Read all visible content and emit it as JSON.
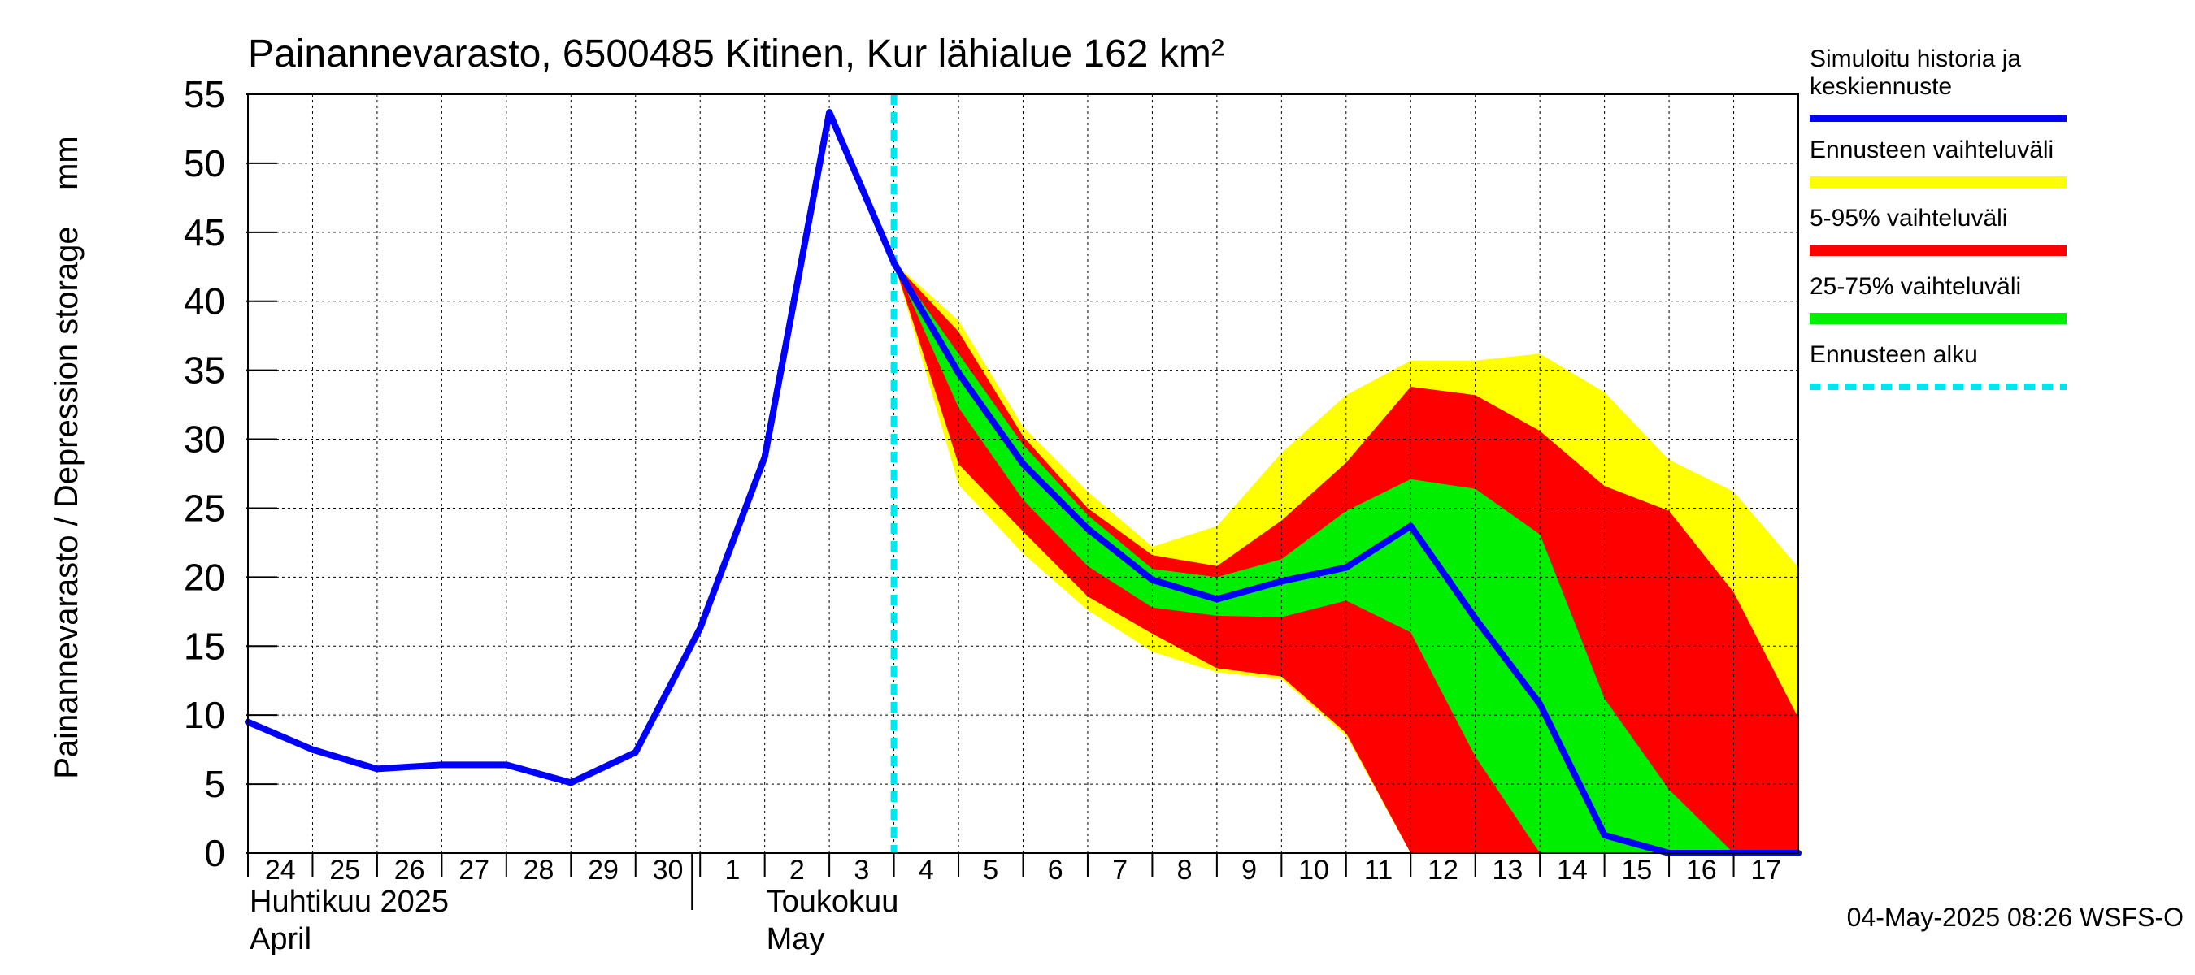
{
  "chart_data": {
    "type": "area",
    "title": "Painannevarasto, 6500485 Kitinen, Kur lähialue 162 km²",
    "ylabel": "Painannevarasto / Depression storage    mm",
    "ylim": [
      0,
      55
    ],
    "y_ticks": [
      "0",
      "5",
      "10",
      "15",
      "20",
      "25",
      "30",
      "35",
      "40",
      "45",
      "50",
      "55"
    ],
    "x_range": [
      0,
      24
    ],
    "x_ticks": [
      {
        "x": 0,
        "label": "24"
      },
      {
        "x": 1,
        "label": "25"
      },
      {
        "x": 2,
        "label": "26"
      },
      {
        "x": 3,
        "label": "27"
      },
      {
        "x": 4,
        "label": "28"
      },
      {
        "x": 5,
        "label": "29"
      },
      {
        "x": 6,
        "label": "30"
      },
      {
        "x": 7,
        "label": "1"
      },
      {
        "x": 8,
        "label": "2"
      },
      {
        "x": 9,
        "label": "3"
      },
      {
        "x": 10,
        "label": "4"
      },
      {
        "x": 11,
        "label": "5"
      },
      {
        "x": 12,
        "label": "6"
      },
      {
        "x": 13,
        "label": "7"
      },
      {
        "x": 14,
        "label": "8"
      },
      {
        "x": 15,
        "label": "9"
      },
      {
        "x": 16,
        "label": "10"
      },
      {
        "x": 17,
        "label": "11"
      },
      {
        "x": 18,
        "label": "12"
      },
      {
        "x": 19,
        "label": "13"
      },
      {
        "x": 20,
        "label": "14"
      },
      {
        "x": 21,
        "label": "15"
      },
      {
        "x": 22,
        "label": "16"
      },
      {
        "x": 23,
        "label": "17"
      }
    ],
    "month_labels": [
      {
        "x": 0,
        "line1": "Huhtikuu  2025",
        "line2": "April"
      },
      {
        "x": 8,
        "line1": "Toukokuu",
        "line2": "May"
      }
    ],
    "month_boundary_x": 7,
    "forecast_start_x": 10,
    "grid": true,
    "legend_position": "right",
    "legend": [
      {
        "label": "Simuloitu historia ja keskiennuste",
        "color": "#0000ff",
        "style": "line"
      },
      {
        "label": "Ennusteen vaihteluväli",
        "color": "#ffff00",
        "style": "band"
      },
      {
        "label": "5-95% vaihteluväli",
        "color": "#ff0000",
        "style": "band"
      },
      {
        "label": "25-75% vaihteluväli",
        "color": "#00ee00",
        "style": "band"
      },
      {
        "label": "Ennusteen alku",
        "color": "#00e5ee",
        "style": "dashed"
      }
    ],
    "series": [
      {
        "name": "Simuloitu historia ja keskiennuste",
        "x": [
          0,
          1,
          2,
          3,
          4,
          5,
          6,
          7,
          8,
          9,
          10,
          11,
          12,
          13,
          14,
          15,
          16,
          17,
          18,
          19,
          20,
          21,
          22,
          23,
          24
        ],
        "values": [
          9.5,
          7.5,
          6.1,
          6.4,
          6.4,
          5.1,
          7.3,
          16.3,
          28.7,
          53.7,
          42.8,
          34.8,
          28.2,
          23.5,
          19.8,
          18.4,
          19.7,
          20.7,
          23.7,
          17.0,
          10.8,
          1.3,
          0,
          0,
          0
        ]
      }
    ],
    "bands": [
      {
        "name": "Ennusteen vaihteluväli",
        "color": "#ffff00",
        "x": [
          10,
          11,
          12,
          13,
          14,
          15,
          16,
          17,
          18,
          19,
          20,
          21,
          22,
          23,
          24
        ],
        "upper": [
          42.8,
          38.6,
          30.9,
          26.2,
          22.2,
          23.7,
          29.0,
          33.2,
          35.7,
          35.7,
          36.2,
          33.4,
          28.5,
          26.2,
          20.7
        ],
        "lower": [
          42.8,
          26.7,
          21.7,
          17.6,
          14.6,
          13.1,
          12.6,
          8.5,
          0,
          0,
          0,
          0,
          0,
          0,
          0
        ]
      },
      {
        "name": "5-95% vaihteluväli",
        "color": "#ff0000",
        "x": [
          10,
          11,
          12,
          13,
          14,
          15,
          16,
          17,
          18,
          19,
          20,
          21,
          22,
          23,
          24
        ],
        "upper": [
          42.8,
          37.8,
          30.2,
          25.0,
          21.6,
          20.8,
          24.1,
          28.3,
          33.8,
          33.2,
          30.6,
          26.6,
          24.8,
          18.9,
          9.8
        ],
        "lower": [
          42.8,
          28.2,
          23.3,
          18.6,
          15.9,
          13.4,
          12.8,
          8.7,
          0,
          0,
          0,
          0,
          0,
          0,
          0
        ]
      },
      {
        "name": "25-75% vaihteluväli",
        "color": "#00ee00",
        "x": [
          10,
          11,
          12,
          13,
          14,
          15,
          16,
          17,
          18,
          19,
          20,
          21,
          22,
          23,
          24
        ],
        "upper": [
          42.8,
          36.2,
          29.6,
          24.5,
          20.6,
          20.0,
          21.3,
          24.8,
          27.1,
          26.4,
          23.1,
          11.2,
          4.6,
          0,
          0
        ],
        "lower": [
          42.8,
          32.3,
          25.6,
          20.8,
          17.8,
          17.2,
          17.1,
          18.3,
          16.0,
          7.0,
          0,
          0,
          0,
          0,
          0
        ]
      }
    ],
    "timestamp": "04-May-2025 08:26 WSFS-O"
  }
}
